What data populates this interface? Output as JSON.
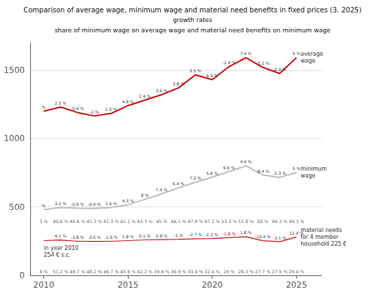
{
  "chart_data": {
    "type": "line",
    "title": "Comparison of average wage, minimum wage and material need benefits in fixed prices (3. 2025)",
    "subtitle": [
      "growth rates",
      "share of minimum wage on average wage and material need benefits on minimum wage"
    ],
    "x": [
      2010,
      2011,
      2012,
      2013,
      2014,
      2015,
      2016,
      2017,
      2018,
      2019,
      2020,
      2021,
      2022,
      2023,
      2024,
      2025
    ],
    "xlim": [
      2009.2,
      2026.5
    ],
    "xticks": [
      2010,
      2015,
      2020,
      2025
    ],
    "ylim": [
      0,
      1700
    ],
    "yticks": [
      0,
      500,
      1000,
      1500
    ],
    "grid": true,
    "series": [
      {
        "name": "average\nwage",
        "color": "#CC0000",
        "values": [
          1200,
          1230,
          1190,
          1165,
          1183,
          1240,
          1280,
          1320,
          1370,
          1465,
          1430,
          1525,
          1590,
          1520,
          1475,
          1590
        ],
        "growth_labels": [
          "%",
          "2.5 %",
          "-0.9 %",
          "-2 %",
          "1.5 %",
          "4.8 %",
          "2.4 %",
          "3.6 %",
          "3.8 %",
          "3.5 %",
          "6.9 %",
          "-2.9 %",
          "7.4 %",
          "-5.2 %",
          "-0.9 %",
          "5 %"
        ]
      },
      {
        "name": "minimum\nwage",
        "color": "#BBBBBB",
        "values": [
          480,
          495,
          491,
          489,
          496,
          516,
          555,
          596,
          640,
          680,
          718,
          758,
          800,
          733,
          716,
          751
        ],
        "growth_labels": [
          "%",
          "3.2 %",
          "-0.9 %",
          "-0.4 %",
          "1.6 %",
          "4.3 %",
          "8 %",
          "7.4 %",
          "6.4 %",
          "7.3 %",
          "5.6 %",
          "9.6 %",
          "4.4 %",
          "-8.4 %",
          "-2.3 %",
          "5 %"
        ]
      },
      {
        "name": "material needs\nfor 4 member\nhousehold 225 €",
        "color": "#CC0000",
        "values": [
          254,
          258,
          249,
          248,
          249,
          254,
          259,
          261,
          263,
          267,
          268,
          276,
          282,
          253,
          246,
          280
        ],
        "growth_labels": [
          null,
          "4.1 %",
          "-3.8 %",
          "-3.5 %",
          "-1.6 %",
          "1.8 %",
          "0.1 %",
          "0.8 %",
          "-1 %",
          "-2.7 %",
          "2.3 %",
          "-1.8 %",
          "1.8 %",
          "-10.4 %",
          "-3.1 %",
          "12.4 %"
        ],
        "note": "in year 2010\n254 € s.c."
      }
    ],
    "share_rows": [
      {
        "labels": [
          "3 %",
          "40.6 %",
          "40.6 %",
          "41.3 %",
          "41.3 %",
          "41.1 %",
          "43.3 %",
          "45 %",
          "46.1 %",
          "47.8 %",
          "47.2 %",
          "53.3 %",
          "51.8 %",
          "50 %",
          "49.3 %",
          "49.3 %"
        ]
      },
      {
        "labels": [
          "8 %",
          "51.2 %",
          "49.7 %",
          "48.2 %",
          "46.7 %",
          "45.6 %",
          "42.2 %",
          "39.6 %",
          "36.9 %",
          "33.4 %",
          "32.4 %",
          "29 %",
          "28.3 %",
          "27.7 %",
          "27.5 %",
          "29.4 %"
        ]
      }
    ]
  }
}
